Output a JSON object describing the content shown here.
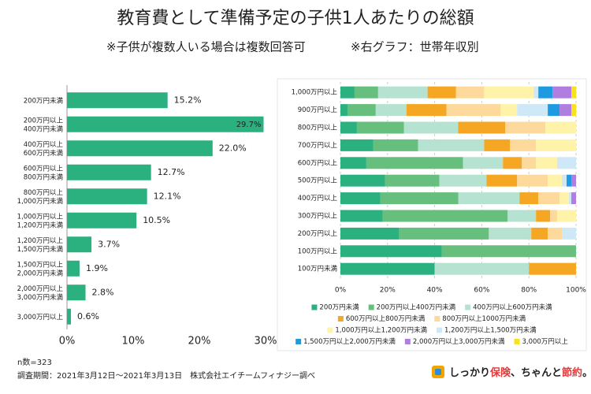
{
  "header": {
    "title": "教育費として準備予定の子供1人あたりの総額",
    "notes": [
      "※子供が複数人いる場合は複数回答可",
      "※右グラフ：世帯年収別"
    ]
  },
  "chart_data": [
    {
      "type": "hbar",
      "color": "#2bb07f",
      "categories": [
        [
          "200万円未満"
        ],
        [
          "200万円以上",
          "400万円未満"
        ],
        [
          "400万円以上",
          "600万円未満"
        ],
        [
          "600万円以上",
          "800万円未満"
        ],
        [
          "800万円以上",
          "1,000万円未満"
        ],
        [
          "1,000万円以上",
          "1,200万円未満"
        ],
        [
          "1,200万円以上",
          "1,500万円未満"
        ],
        [
          "1,500万円以上",
          "2,000万円未満"
        ],
        [
          "2,000万円以上",
          "3,000万円未満"
        ],
        [
          "3,000万円以上"
        ]
      ],
      "values": [
        15.2,
        29.7,
        22,
        12.7,
        12.1,
        10.5,
        3.7,
        1.9,
        2.8,
        0.6
      ],
      "value_labels": [
        "15.2%",
        "29.7%",
        "22.0%",
        "12.7%",
        "12.1%",
        "10.5%",
        "3.7%",
        "1.9%",
        "2.8%",
        "0.6%"
      ],
      "xlim": [
        0,
        30
      ],
      "xticks": [
        {
          "value": 0,
          "label": "0%"
        },
        {
          "value": 10,
          "label": "10%"
        },
        {
          "value": 20,
          "label": "20%"
        },
        {
          "value": 30,
          "label": "30%"
        }
      ]
    },
    {
      "type": "stacked_hbar",
      "categories": [
        "1,000万円以上",
        "900万円以上",
        "800万円以上",
        "700万円以上",
        "600万円以上",
        "500万円以上",
        "400万円以上",
        "300万円以上",
        "200万円以上",
        "100万円以上",
        "100万円未満"
      ],
      "series": [
        {
          "name": "200万円未満",
          "color": "#2bb07f",
          "values": [
            6,
            3,
            7,
            14,
            11,
            19,
            17,
            18,
            25,
            43,
            40
          ]
        },
        {
          "name": "200万円以上400万円未満",
          "color": "#66bf7d",
          "values": [
            10,
            12,
            20,
            19,
            41,
            23,
            33,
            53,
            38,
            57,
            0
          ]
        },
        {
          "name": "400万円以上600万円未満",
          "color": "#b6e3d1",
          "values": [
            21,
            13,
            23,
            28,
            17,
            20,
            26,
            12,
            18,
            0,
            40
          ]
        },
        {
          "name": "600万円以上800万円未満",
          "color": "#f5a623",
          "values": [
            12,
            17,
            20,
            11,
            8,
            13,
            8,
            6,
            7,
            0,
            20
          ]
        },
        {
          "name": "800万円以上1000万円未満",
          "color": "#fdd99b",
          "values": [
            12,
            23,
            17,
            11,
            6,
            13,
            9,
            3,
            6,
            0,
            0
          ]
        },
        {
          "name": "1,000万円以上1,200万円未満",
          "color": "#fef3a8",
          "values": [
            21,
            7,
            13,
            17,
            9,
            6,
            4,
            8,
            0,
            0,
            0
          ]
        },
        {
          "name": "1,200万円以上1,500万円未満",
          "color": "#cfe8f7",
          "values": [
            2,
            13,
            0,
            0,
            8,
            2,
            1,
            0,
            6,
            0,
            0
          ]
        },
        {
          "name": "1,500万円以上2,000万円未満",
          "color": "#1e9be0",
          "values": [
            6,
            5,
            0,
            0,
            0,
            2,
            0,
            0,
            0,
            0,
            0
          ]
        },
        {
          "name": "2,000万円以上3,000万円未満",
          "color": "#b07ee0",
          "values": [
            8,
            5,
            0,
            0,
            0,
            2,
            2,
            0,
            0,
            0,
            0
          ]
        },
        {
          "name": "3,000万円以上",
          "color": "#f8e21d",
          "values": [
            2,
            2,
            0,
            0,
            0,
            0,
            0,
            0,
            0,
            0,
            0
          ]
        }
      ],
      "xlim": [
        0,
        100
      ],
      "xticks": [
        {
          "value": 0,
          "label": "0%"
        },
        {
          "value": 20,
          "label": "20%"
        },
        {
          "value": 40,
          "label": "40%"
        },
        {
          "value": 60,
          "label": "60%"
        },
        {
          "value": 80,
          "label": "80%"
        },
        {
          "value": 100,
          "label": "100%"
        }
      ],
      "grid": true
    }
  ],
  "footer": {
    "sample": "n数=323",
    "period": "調査期間：2021年3月12日～2021年3月13日　株式会社エイチームフィナジー調べ",
    "logo": [
      "しっかり",
      "保険",
      "、ちゃんと",
      "節約",
      "。"
    ]
  }
}
